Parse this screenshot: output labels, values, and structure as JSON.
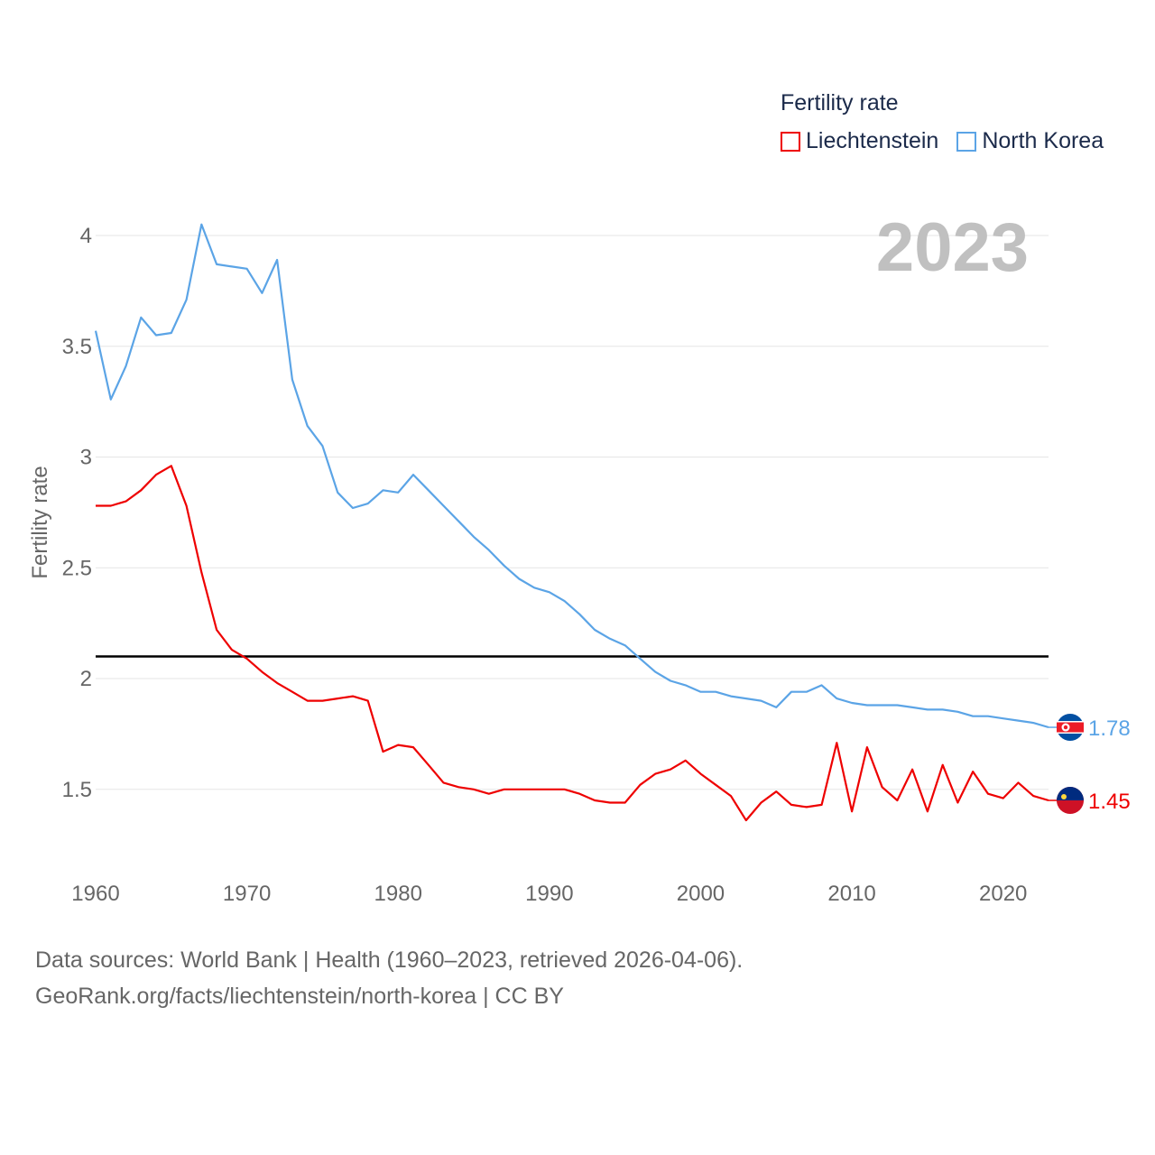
{
  "chart_data": {
    "type": "line",
    "title": "Fertility rate",
    "year_label": "2023",
    "xlabel": "",
    "ylabel": "Fertility rate",
    "xlim": [
      1960,
      2023
    ],
    "ylim": [
      1.2,
      4.1
    ],
    "x_ticks": [
      1960,
      1970,
      1980,
      1990,
      2000,
      2010,
      2020
    ],
    "y_ticks": [
      1.5,
      2,
      2.5,
      3,
      3.5,
      4
    ],
    "y_tick_labels": [
      "1.5",
      "2",
      "2.5",
      "3",
      "3.5",
      "4"
    ],
    "x_tick_labels": [
      "1960",
      "1970",
      "1980",
      "1990",
      "2000",
      "2010",
      "2020"
    ],
    "grid": true,
    "legend_position": "top-right",
    "reference_line": 2.1,
    "x": [
      1960,
      1961,
      1962,
      1963,
      1964,
      1965,
      1966,
      1967,
      1968,
      1969,
      1970,
      1971,
      1972,
      1973,
      1974,
      1975,
      1976,
      1977,
      1978,
      1979,
      1980,
      1981,
      1982,
      1983,
      1984,
      1985,
      1986,
      1987,
      1988,
      1989,
      1990,
      1991,
      1992,
      1993,
      1994,
      1995,
      1996,
      1997,
      1998,
      1999,
      2000,
      2001,
      2002,
      2003,
      2004,
      2005,
      2006,
      2007,
      2008,
      2009,
      2010,
      2011,
      2012,
      2013,
      2014,
      2015,
      2016,
      2017,
      2018,
      2019,
      2020,
      2021,
      2022,
      2023
    ],
    "series": [
      {
        "name": "Liechtenstein",
        "color": "#ee0000",
        "end_label": "1.45",
        "values": [
          2.78,
          2.78,
          2.8,
          2.85,
          2.92,
          2.96,
          2.78,
          2.48,
          2.22,
          2.13,
          2.09,
          2.03,
          1.98,
          1.94,
          1.9,
          1.9,
          1.91,
          1.92,
          1.9,
          1.67,
          1.7,
          1.69,
          1.61,
          1.53,
          1.51,
          1.5,
          1.48,
          1.5,
          1.5,
          1.5,
          1.5,
          1.5,
          1.48,
          1.45,
          1.44,
          1.44,
          1.52,
          1.57,
          1.59,
          1.63,
          1.57,
          1.52,
          1.47,
          1.36,
          1.44,
          1.49,
          1.43,
          1.42,
          1.43,
          1.71,
          1.4,
          1.69,
          1.51,
          1.45,
          1.59,
          1.4,
          1.61,
          1.44,
          1.58,
          1.48,
          1.46,
          1.53,
          1.47,
          1.45
        ]
      },
      {
        "name": "North Korea",
        "color": "#5ba4e6",
        "end_label": "1.78",
        "values": [
          3.57,
          3.26,
          3.41,
          3.63,
          3.55,
          3.56,
          3.71,
          4.05,
          3.87,
          3.86,
          3.85,
          3.74,
          3.89,
          3.35,
          3.14,
          3.05,
          2.84,
          2.77,
          2.79,
          2.85,
          2.84,
          2.92,
          2.85,
          2.78,
          2.71,
          2.64,
          2.58,
          2.51,
          2.45,
          2.41,
          2.39,
          2.35,
          2.29,
          2.22,
          2.18,
          2.15,
          2.09,
          2.03,
          1.99,
          1.97,
          1.94,
          1.94,
          1.92,
          1.91,
          1.9,
          1.87,
          1.94,
          1.94,
          1.97,
          1.91,
          1.89,
          1.88,
          1.88,
          1.88,
          1.87,
          1.86,
          1.86,
          1.85,
          1.83,
          1.83,
          1.82,
          1.81,
          1.8,
          1.78
        ]
      }
    ]
  },
  "footer": {
    "line1": "Data sources: World Bank | Health (1960–2023, retrieved 2026-04-06).",
    "line2": "GeoRank.org/facts/liechtenstein/north-korea | CC BY"
  }
}
